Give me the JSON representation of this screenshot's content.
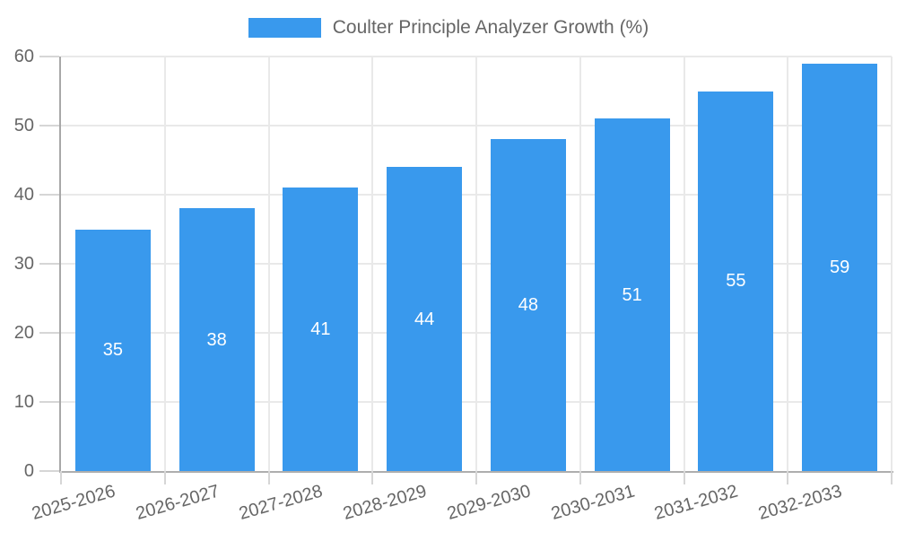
{
  "legend": {
    "label": "Coulter Principle Analyzer Growth (%)"
  },
  "chart_data": {
    "type": "bar",
    "title": "Coulter Principle Analyzer Growth (%)",
    "categories": [
      "2025-2026",
      "2026-2027",
      "2027-2028",
      "2028-2029",
      "2029-2030",
      "2030-2031",
      "2031-2032",
      "2032-2033"
    ],
    "values": [
      35,
      38,
      41,
      44,
      48,
      51,
      55,
      59
    ],
    "xlabel": "",
    "ylabel": "",
    "ylim": [
      0,
      60
    ],
    "yticks": [
      0,
      10,
      20,
      30,
      40,
      50,
      60
    ],
    "grid": true,
    "legend_position": "top",
    "bar_color": "#3999ed",
    "value_label_color": "#ffffff",
    "axis_text_color": "#666666",
    "grid_color": "#e9e9e9",
    "axis_line_color": "#a8a8a8",
    "x_tick_label_rotation_deg": -16
  }
}
